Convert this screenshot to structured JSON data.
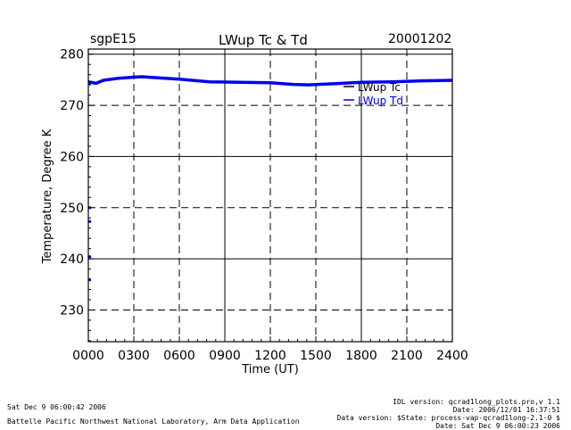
{
  "header": {
    "site": "sgpE15",
    "title": "LWup Tc & Td",
    "date": "20001202"
  },
  "footer": {
    "timestamp": "Sat Dec  9 06:00:42 2006",
    "lab": "Battelle Pacific Northwest National Laboratory, Arm Data Application",
    "idl_version": "IDL version: qcrad1long_plots.pro,v 1.1",
    "file_date": "Date: 2006/12/01 16:37:51",
    "data_version": "Data version: $State: process-vap-qcrad1long-2.1-0 $",
    "run_date": "Date: Sat Dec  9 06:00:23 2006"
  },
  "colors": {
    "tc": "#000000",
    "td": "#0000ee",
    "grid": "#000000"
  },
  "chart_data": {
    "type": "line",
    "title": "LWup Tc & Td",
    "xlabel": "Time (UT)",
    "ylabel": "Temperature, Degree K",
    "xlim": [
      0,
      2400
    ],
    "ylim": [
      223.8,
      281
    ],
    "x_ticks": [
      0,
      300,
      600,
      900,
      1200,
      1500,
      1800,
      2100,
      2400
    ],
    "x_tick_labels": [
      "0000",
      "0300",
      "0600",
      "0900",
      "1200",
      "1500",
      "1800",
      "2100",
      "2400"
    ],
    "y_ticks": [
      230,
      240,
      250,
      260,
      270,
      280
    ],
    "y_tick_labels": [
      "230",
      "240",
      "250",
      "260",
      "270",
      "280"
    ],
    "grid": true,
    "legend_position": "top-right",
    "series": [
      {
        "name": "LWup Tc",
        "x": [
          0,
          50,
          100,
          200,
          300,
          350,
          450,
          600,
          800,
          1000,
          1200,
          1350,
          1450,
          1600,
          1800,
          2000,
          2200,
          2400
        ],
        "y": [
          274.6,
          274.3,
          274.9,
          275.3,
          275.5,
          275.6,
          275.4,
          275.1,
          274.6,
          274.5,
          274.4,
          274.1,
          274.0,
          274.2,
          274.5,
          274.6,
          274.8,
          274.9
        ]
      },
      {
        "name": "LWup Td",
        "x": [
          0,
          50,
          100,
          200,
          300,
          350,
          450,
          600,
          800,
          1000,
          1200,
          1350,
          1450,
          1600,
          1800,
          2000,
          2200,
          2400
        ],
        "y": [
          274.6,
          274.3,
          274.9,
          275.3,
          275.5,
          275.6,
          275.4,
          275.1,
          274.6,
          274.5,
          274.4,
          274.1,
          274.0,
          274.2,
          274.5,
          274.6,
          274.8,
          274.9
        ]
      },
      {
        "name": "",
        "x": [
          0,
          0,
          0,
          0,
          0
        ],
        "y": [
          250.0,
          247.3,
          240.4,
          235.9,
          274.3
        ]
      }
    ]
  }
}
